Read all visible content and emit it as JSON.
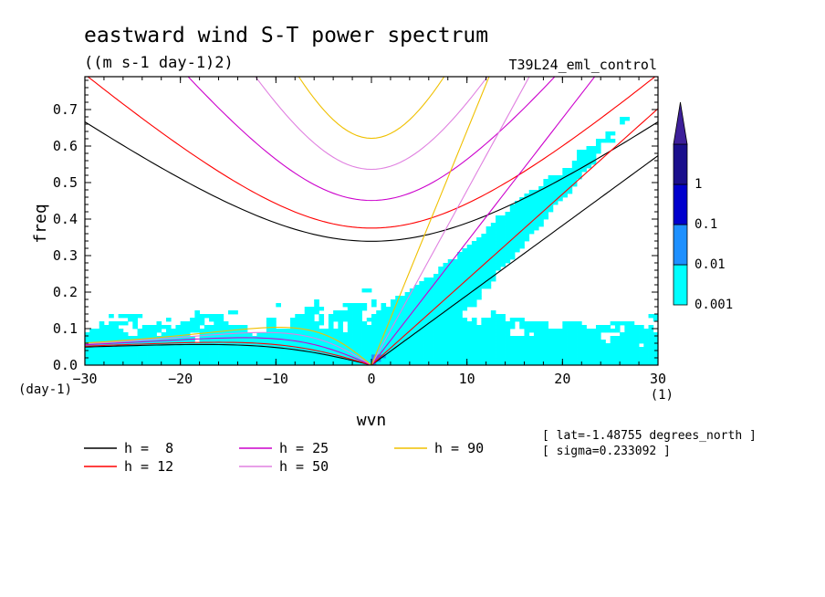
{
  "chart_data": {
    "type": "heatmap",
    "title": "eastward wind S-T power spectrum",
    "units": "((m s-1 day-1)2)",
    "run_label": "T39L24_eml_control",
    "xlabel": "wvn",
    "ylabel": "freq",
    "x_units": "(1)",
    "y_units": "(day-1)",
    "xlim": [
      -30,
      30
    ],
    "ylim": [
      0,
      0.79
    ],
    "x_ticks": [
      -30,
      -20,
      -10,
      0,
      10,
      20,
      30
    ],
    "x_tick_labels": [
      "−30",
      "−20",
      "−10",
      "0",
      "10",
      "20",
      "30"
    ],
    "y_ticks": [
      0,
      0.1,
      0.2,
      0.3,
      0.4,
      0.5,
      0.6,
      0.7
    ],
    "y_tick_labels": [
      "0.0",
      "0.1",
      "0.2",
      "0.3",
      "0.4",
      "0.5",
      "0.6",
      "0.7"
    ],
    "contour_levels": [
      0.001,
      0.01,
      0.1,
      1
    ],
    "colorbar_labels": [
      "0.001",
      "0.01",
      "0.1",
      "1"
    ],
    "colorbar_colors": [
      "#00ffff",
      "#1e90ff",
      "#0000cd",
      "#1a0f8c",
      "#3d1f99"
    ],
    "equivalent_depths": [
      {
        "label": "h =  8",
        "h": 8,
        "color": "#000000"
      },
      {
        "label": "h = 12",
        "h": 12,
        "color": "#ff0000"
      },
      {
        "label": "h = 25",
        "h": 25,
        "color": "#cc00cc"
      },
      {
        "label": "h = 50",
        "h": 50,
        "color": "#e080e0"
      },
      {
        "label": "h = 90",
        "h": 90,
        "color": "#f0c000"
      }
    ],
    "annotations": [
      "[ lat=-1.48755 degrees_north ]",
      "[ sigma=0.233092 ]"
    ]
  }
}
